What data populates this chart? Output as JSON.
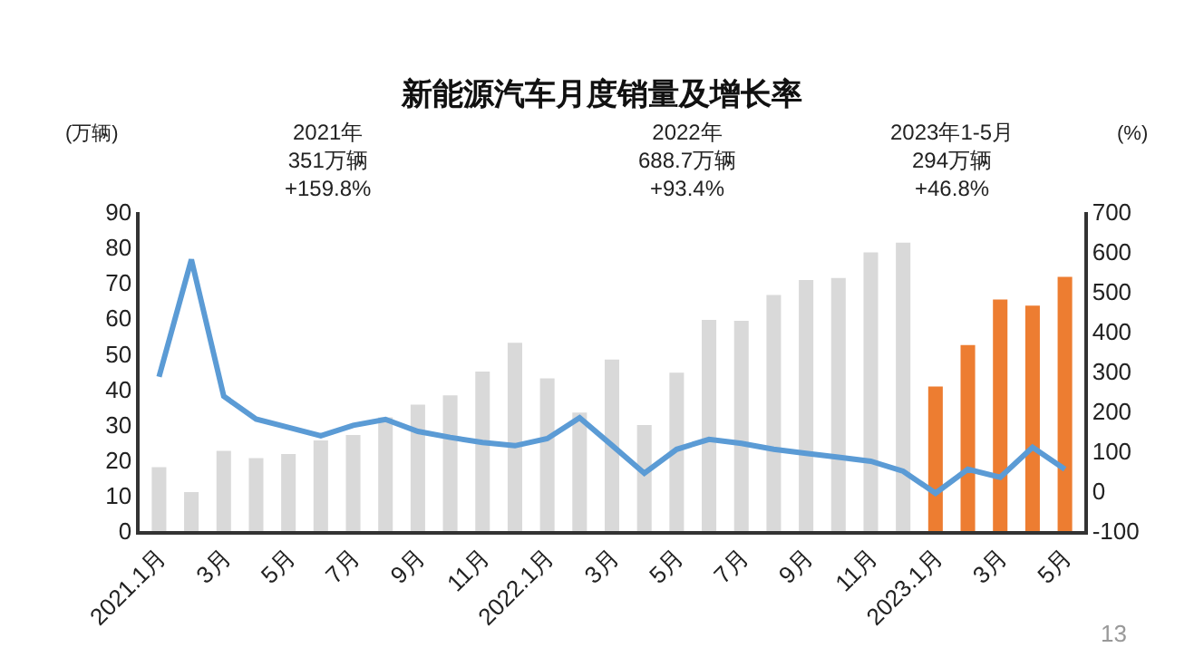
{
  "chart_data": {
    "type": "bar",
    "title": "新能源汽车月度销量及增长率",
    "ylabel": "(万辆)",
    "y2label": "(%)",
    "categories": [
      "2021.1月",
      null,
      "3月",
      null,
      "5月",
      null,
      "7月",
      null,
      "9月",
      null,
      "11月",
      null,
      "2022.1月",
      null,
      "3月",
      null,
      "5月",
      null,
      "7月",
      null,
      "9月",
      null,
      "11月",
      null,
      "2023.1月",
      null,
      "3月",
      null,
      "5月"
    ],
    "series": [
      {
        "colors": [
          "#d9d9d9",
          "#d9d9d9",
          "#d9d9d9",
          "#d9d9d9",
          "#d9d9d9",
          "#d9d9d9",
          "#d9d9d9",
          "#d9d9d9",
          "#d9d9d9",
          "#d9d9d9",
          "#d9d9d9",
          "#d9d9d9",
          "#d9d9d9",
          "#d9d9d9",
          "#d9d9d9",
          "#d9d9d9",
          "#d9d9d9",
          "#d9d9d9",
          "#d9d9d9",
          "#d9d9d9",
          "#d9d9d9",
          "#d9d9d9",
          "#d9d9d9",
          "#d9d9d9",
          "#ed7d31",
          "#ed7d31",
          "#ed7d31",
          "#ed7d31",
          "#ed7d31"
        ],
        "values": [
          18,
          11,
          22.6,
          20.6,
          21.7,
          25.6,
          27.1,
          32.1,
          35.7,
          38.3,
          45,
          53.1,
          43.1,
          33.4,
          48.4,
          29.9,
          44.7,
          59.6,
          59.3,
          66.6,
          70.8,
          71.4,
          78.6,
          81.4,
          40.8,
          52.5,
          65.3,
          63.6,
          71.7
        ]
      },
      {
        "type": "line",
        "axis": "y2",
        "color": "#5b9bd5",
        "values": [
          287,
          581,
          238,
          181,
          160,
          139,
          165,
          180,
          150,
          135,
          122,
          114,
          132,
          184,
          115,
          45,
          105,
          130,
          120,
          105,
          95,
          85,
          75,
          50,
          -5,
          55,
          35,
          110,
          55
        ]
      }
    ],
    "ylim": [
      0,
      90
    ],
    "yticks": [
      0,
      10,
      20,
      30,
      40,
      50,
      60,
      70,
      80,
      90
    ],
    "y2lim": [
      -100,
      700
    ],
    "y2ticks": [
      -100,
      0,
      100,
      200,
      300,
      400,
      500,
      600,
      700
    ],
    "grid": false,
    "marker": "none",
    "line_style": "solid",
    "annotations": [
      "2021年\n351万辆\n+159.8%",
      "2022年\n688.7万辆\n+93.4%",
      "2023年1-5月\n294万辆\n+46.8%",
      "13"
    ]
  }
}
